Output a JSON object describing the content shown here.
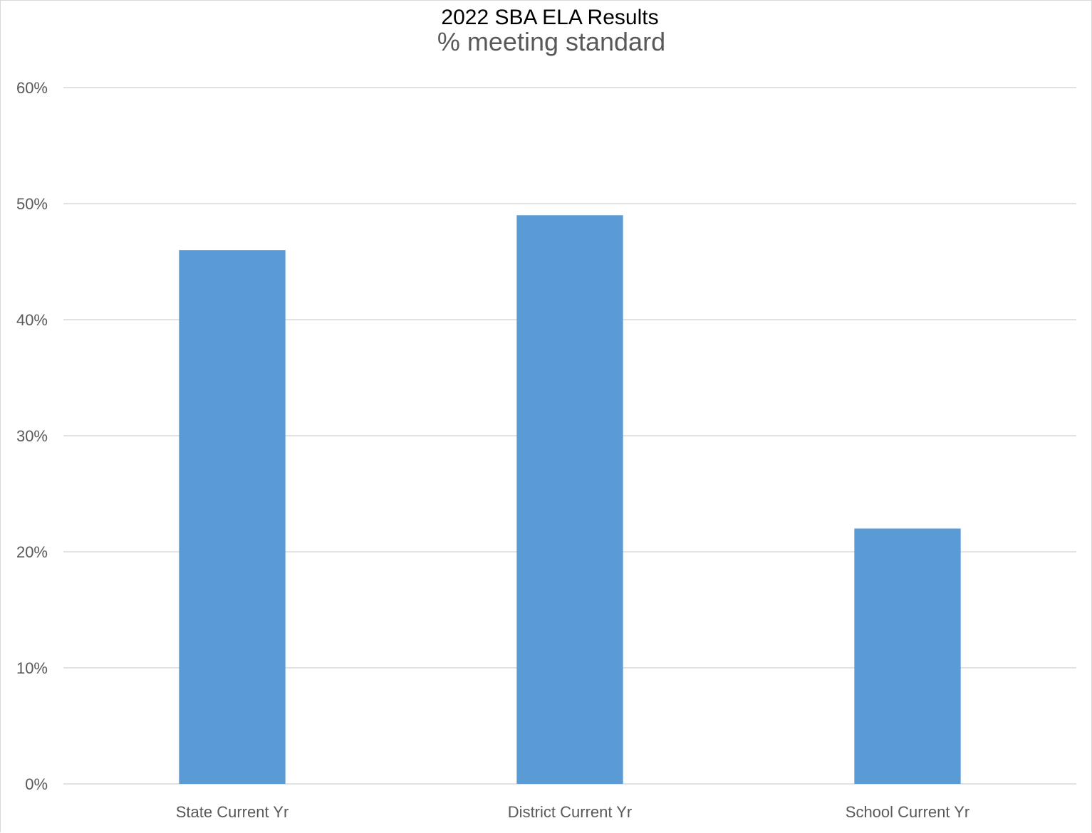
{
  "chart_data": {
    "type": "bar",
    "title": "2022 SBA ELA Results",
    "subtitle": "% meeting standard",
    "categories": [
      "State Current Yr",
      "District Current Yr",
      "School Current Yr"
    ],
    "values": [
      46,
      49,
      22
    ],
    "value_format": "percent",
    "ylim": [
      0,
      60
    ],
    "yticks": [
      0,
      10,
      20,
      30,
      40,
      50,
      60
    ],
    "ytick_labels": [
      "0%",
      "10%",
      "20%",
      "30%",
      "40%",
      "50%",
      "60%"
    ],
    "xlabel": "",
    "ylabel": "",
    "grid": true,
    "legend": "none",
    "bar_color": "#5b9bd5",
    "gridline_color": "#d9d9d9"
  }
}
